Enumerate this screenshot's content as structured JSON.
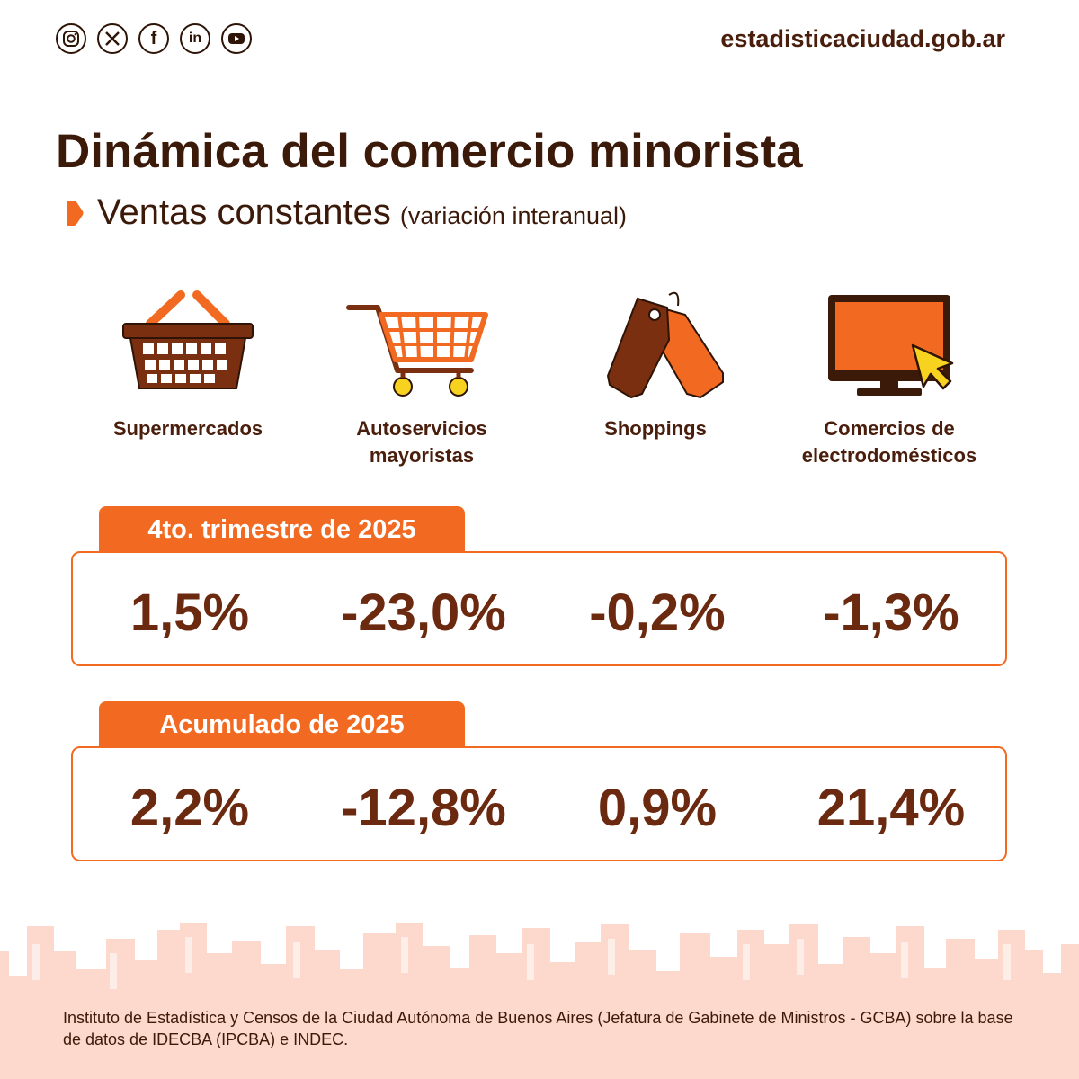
{
  "header": {
    "site": "estadisticaciudad.gob.ar",
    "socials": [
      {
        "icon": "instagram-icon"
      },
      {
        "icon": "x-icon",
        "glyph": "𝕏"
      },
      {
        "icon": "facebook-icon",
        "glyph": "f"
      },
      {
        "icon": "linkedin-icon",
        "glyph": "in"
      },
      {
        "icon": "youtube-icon"
      }
    ]
  },
  "title": "Dinámica del comercio minorista",
  "subtitle": {
    "main": "Ventas constantes",
    "paren": "(variación interanual)"
  },
  "categories": [
    {
      "icon": "shopping-basket-icon",
      "label_lines": [
        "Supermercados"
      ]
    },
    {
      "icon": "shopping-cart-icon",
      "label_lines": [
        "Autoservicios",
        "mayoristas"
      ]
    },
    {
      "icon": "price-tags-icon",
      "label_lines": [
        "Shoppings"
      ]
    },
    {
      "icon": "monitor-cursor-icon",
      "label_lines": [
        "Comercios de",
        "electrodomésticos"
      ]
    }
  ],
  "q4": {
    "label": "4to. trimestre de 2025",
    "values": [
      "1,5%",
      "-23,0%",
      "-0,2%",
      "-1,3%"
    ]
  },
  "ytd": {
    "label": "Acumulado de 2025",
    "values": [
      "2,2%",
      "-12,8%",
      "0,9%",
      "21,4%"
    ]
  },
  "source": "Instituto de Estadística y Censos de la Ciudad Autónoma de Buenos Aires (Jefatura de Gabinete de Ministros - GCBA) sobre la base de datos de IDECBA (IPCBA) e INDEC.",
  "colors": {
    "accent": "#f26a21",
    "dark_brown": "#3b1a0a",
    "value_brown": "#6b2a10",
    "skyline": "#fcd9cc",
    "yellow": "#f7d21f"
  }
}
